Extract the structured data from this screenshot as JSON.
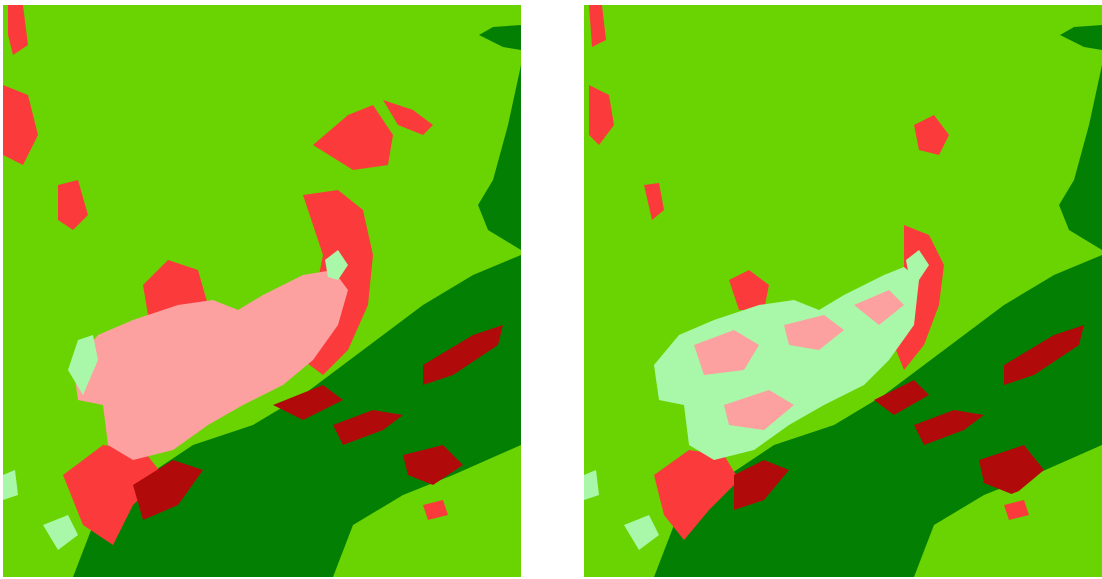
{
  "figure": {
    "panels": [
      {
        "id": "left",
        "description_text": ""
      },
      {
        "id": "right",
        "description_text": ""
      }
    ]
  },
  "colors": {
    "background_land": "#6ad402",
    "dark_region": "#038003",
    "red_patch": "#fb3b3b",
    "dark_red_patch": "#b00a0a",
    "pink_patch": "#fca0a0",
    "pale_green_patch": "#a9f8a9"
  }
}
